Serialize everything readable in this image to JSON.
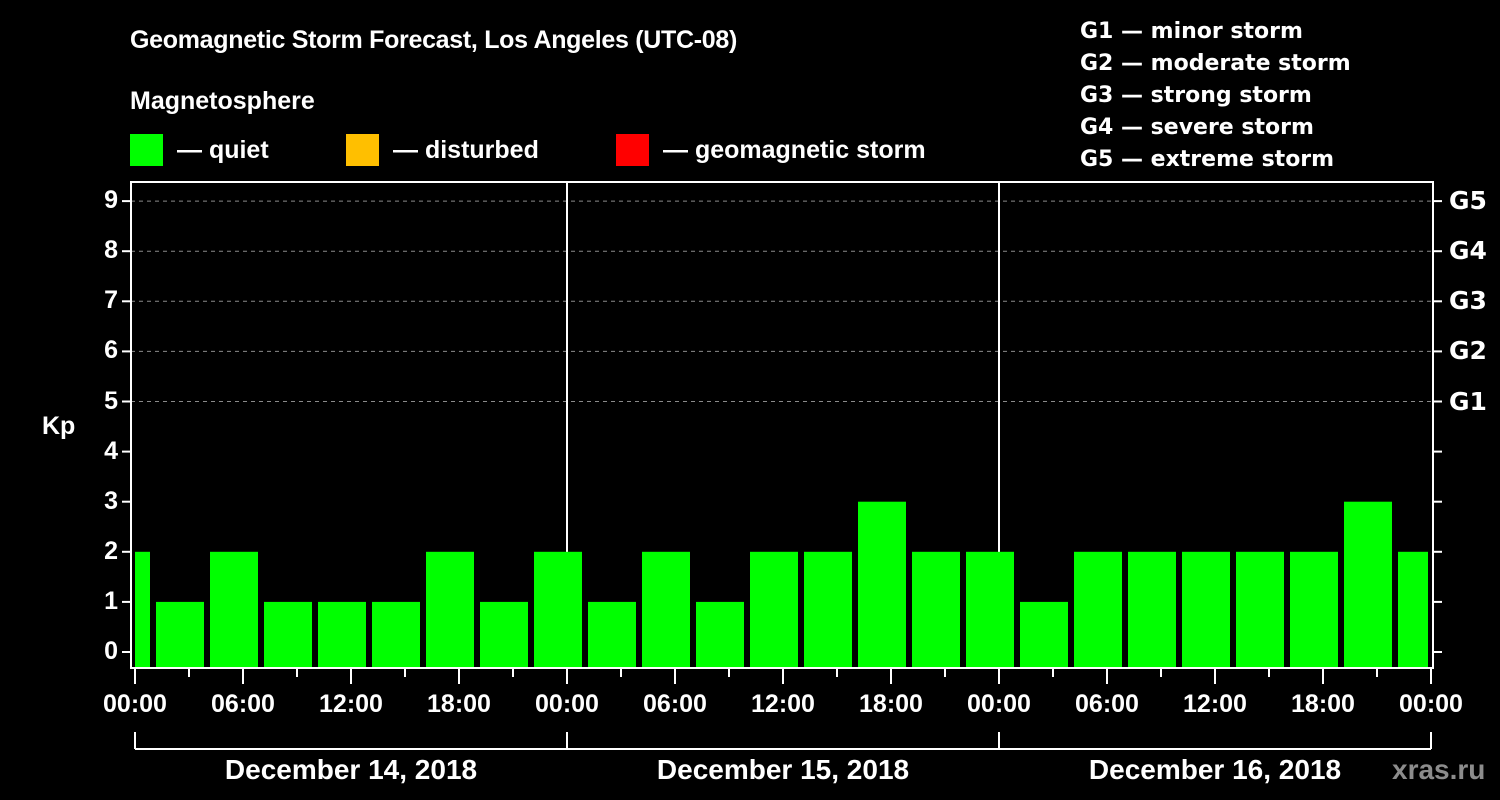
{
  "header": {
    "title": "Geomagnetic Storm Forecast, Los Angeles (UTC-08)",
    "subtitle": "Magnetosphere"
  },
  "legend": {
    "items": [
      {
        "label": "— quiet",
        "color": "#00ff00"
      },
      {
        "label": "— disturbed",
        "color": "#ffbf00"
      },
      {
        "label": "— geomagnetic storm",
        "color": "#ff0000"
      }
    ]
  },
  "storm_scale": [
    "G1 — minor storm",
    "G2 — moderate storm",
    "G3 — strong storm",
    "G4 — severe storm",
    "G5 — extreme storm"
  ],
  "axes": {
    "ylabel": "Kp",
    "yticks": [
      "0",
      "1",
      "2",
      "3",
      "4",
      "5",
      "6",
      "7",
      "8",
      "9"
    ],
    "right_ticks": [
      "G1",
      "G2",
      "G3",
      "G4",
      "G5"
    ],
    "xticks": [
      "00:00",
      "06:00",
      "12:00",
      "18:00",
      "00:00",
      "06:00",
      "12:00",
      "18:00",
      "00:00",
      "06:00",
      "12:00",
      "18:00",
      "00:00"
    ],
    "days": [
      "December 14, 2018",
      "December 15, 2018",
      "December 16, 2018"
    ]
  },
  "watermark": "xras.ru",
  "chart_data": {
    "type": "bar",
    "title": "Geomagnetic Storm Forecast, Los Angeles (UTC-08)",
    "subtitle": "Magnetosphere",
    "xlabel": "",
    "ylabel": "Kp",
    "ylim": [
      -0.3,
      9.6
    ],
    "grid": "dashed horizontal lines at Kp 5-9",
    "legend": [
      "quiet",
      "disturbed",
      "geomagnetic storm"
    ],
    "legend_colors": [
      "#00ff00",
      "#ffbf00",
      "#ff0000"
    ],
    "right_axis_labels": {
      "5": "G1",
      "6": "G2",
      "7": "G3",
      "8": "G4",
      "9": "G5"
    },
    "categories": [
      "Dec 14 00:00-01:00",
      "Dec 14 01:00-04:00",
      "Dec 14 04:00-07:00",
      "Dec 14 07:00-10:00",
      "Dec 14 10:00-13:00",
      "Dec 14 13:00-16:00",
      "Dec 14 16:00-19:00",
      "Dec 14 19:00-22:00",
      "Dec 14 22:00-Dec 15 01:00",
      "Dec 15 01:00-04:00",
      "Dec 15 04:00-07:00",
      "Dec 15 07:00-10:00",
      "Dec 15 10:00-13:00",
      "Dec 15 13:00-16:00",
      "Dec 15 16:00-19:00",
      "Dec 15 19:00-22:00",
      "Dec 15 22:00-Dec 16 01:00",
      "Dec 16 01:00-04:00",
      "Dec 16 04:00-07:00",
      "Dec 16 07:00-10:00",
      "Dec 16 10:00-13:00",
      "Dec 16 13:00-16:00",
      "Dec 16 16:00-19:00",
      "Dec 16 19:00-22:00",
      "Dec 16 22:00-24:00"
    ],
    "start_hours": [
      0,
      1,
      4,
      7,
      10,
      13,
      16,
      19,
      22,
      25,
      28,
      31,
      34,
      37,
      40,
      43,
      46,
      49,
      52,
      55,
      58,
      61,
      64,
      67,
      70
    ],
    "end_hours": [
      1,
      4,
      7,
      10,
      13,
      16,
      19,
      22,
      25,
      28,
      31,
      34,
      37,
      40,
      43,
      46,
      49,
      52,
      55,
      58,
      61,
      64,
      67,
      70,
      72
    ],
    "values": [
      2,
      1,
      2,
      1,
      1,
      1,
      2,
      1,
      2,
      1,
      2,
      1,
      2,
      2,
      3,
      2,
      2,
      1,
      2,
      2,
      2,
      2,
      2,
      3,
      2
    ],
    "status": [
      "quiet",
      "quiet",
      "quiet",
      "quiet",
      "quiet",
      "quiet",
      "quiet",
      "quiet",
      "quiet",
      "quiet",
      "quiet",
      "quiet",
      "quiet",
      "quiet",
      "quiet",
      "quiet",
      "quiet",
      "quiet",
      "quiet",
      "quiet",
      "quiet",
      "quiet",
      "quiet",
      "quiet",
      "quiet"
    ]
  }
}
